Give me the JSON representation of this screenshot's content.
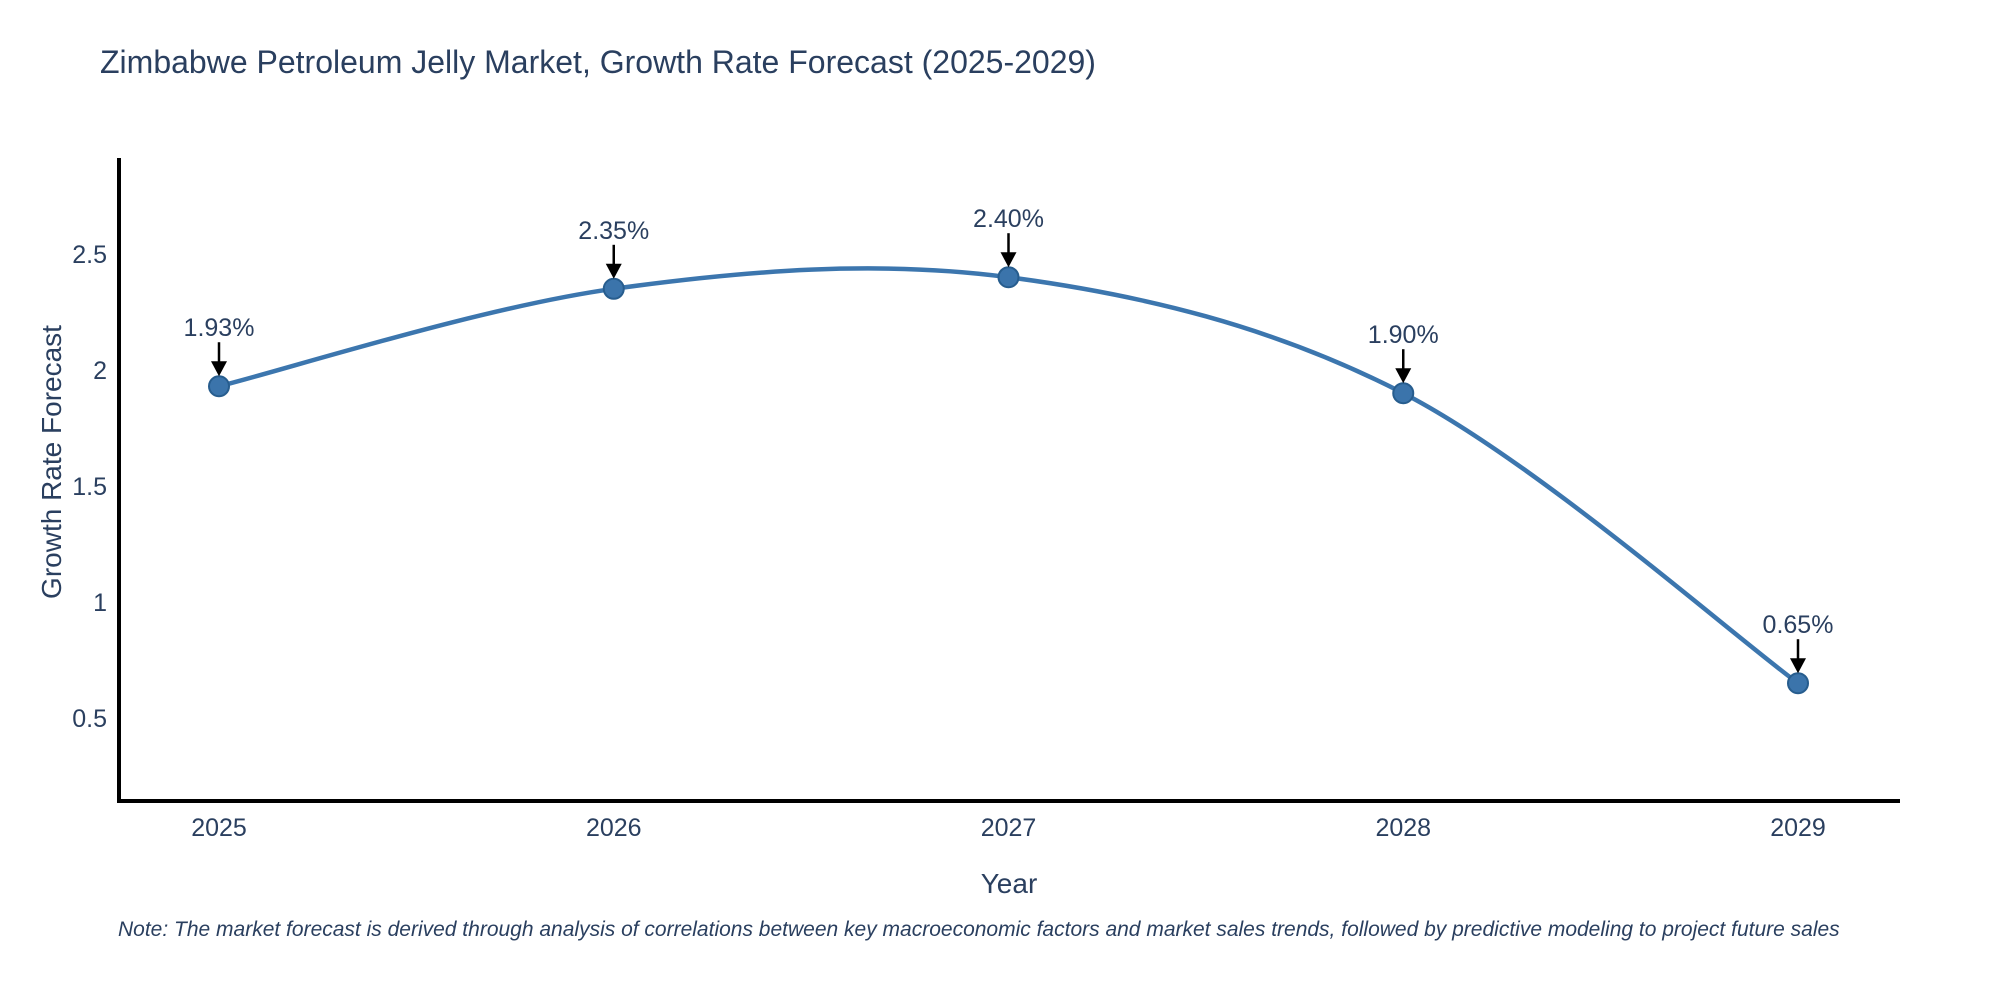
{
  "chart_data": {
    "type": "line",
    "line_shape": "spline",
    "title": "Zimbabwe Petroleum Jelly Market, Growth Rate Forecast (2025-2029)",
    "xlabel": "Year",
    "ylabel": "Growth Rate Forecast",
    "x": [
      2025,
      2026,
      2027,
      2028,
      2029
    ],
    "series": [
      {
        "name": "Growth Rate Forecast",
        "values": [
          1.93,
          2.35,
          2.4,
          1.9,
          0.65
        ]
      }
    ],
    "point_labels": [
      "1.93%",
      "2.35%",
      "2.40%",
      "1.90%",
      "0.65%"
    ],
    "xtick_labels": [
      "2025",
      "2026",
      "2027",
      "2028",
      "2029"
    ],
    "ytick_values": [
      0.5,
      1,
      1.5,
      2,
      2.5
    ],
    "ytick_labels": [
      "0.5",
      "1",
      "1.5",
      "2",
      "2.5"
    ],
    "ylim": [
      0.15,
      2.9
    ],
    "grid": false,
    "legend_position": "none",
    "annotations_have_arrows": true,
    "colors": {
      "line": "#3c76ae",
      "marker_fill": "#3b74ab",
      "marker_edge": "#275d8e",
      "text": "#2a3f5f",
      "axis": "#000000",
      "arrow": "#000000",
      "background": "#ffffff"
    }
  },
  "footnote": {
    "text": "Note: The market forecast is derived through analysis of correlations between key macroeconomic factors and market sales trends, followed by predictive modeling to project future sales"
  }
}
